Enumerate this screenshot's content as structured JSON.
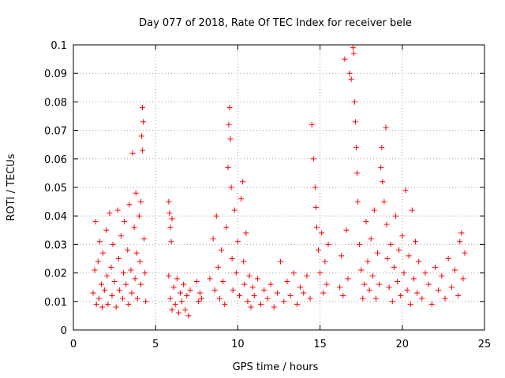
{
  "chart_data": {
    "type": "scatter",
    "title": "Day 077 of 2018, Rate Of TEC Index for receiver bele",
    "xlabel": "GPS time / hours",
    "ylabel": "ROTI / TECUs",
    "xlim": [
      0,
      25
    ],
    "ylim": [
      0,
      0.1
    ],
    "xticks": [
      0,
      5,
      10,
      15,
      20,
      25
    ],
    "xtick_labels": [
      "0",
      "5",
      "10",
      "15",
      "20",
      "25"
    ],
    "yticks": [
      0,
      0.01,
      0.02,
      0.03,
      0.04,
      0.05,
      0.06,
      0.07,
      0.08,
      0.09,
      0.1
    ],
    "ytick_labels": [
      "0",
      "0.01",
      "0.02",
      "0.03",
      "0.04",
      "0.05",
      "0.06",
      "0.07",
      "0.08",
      "0.09",
      "0.1"
    ],
    "grid": true,
    "legend": "none",
    "marker": "+",
    "color": "#ff0000",
    "series": [
      {
        "points": [
          [
            1.2,
            0.013
          ],
          [
            1.3,
            0.021
          ],
          [
            1.35,
            0.038
          ],
          [
            1.4,
            0.009
          ],
          [
            1.5,
            0.024
          ],
          [
            1.55,
            0.011
          ],
          [
            1.6,
            0.031
          ],
          [
            1.7,
            0.016
          ],
          [
            1.75,
            0.008
          ],
          [
            1.8,
            0.027
          ],
          [
            1.9,
            0.014
          ],
          [
            2.0,
            0.035
          ],
          [
            2.05,
            0.019
          ],
          [
            2.1,
            0.009
          ],
          [
            2.2,
            0.041
          ],
          [
            2.3,
            0.022
          ],
          [
            2.35,
            0.012
          ],
          [
            2.4,
            0.03
          ],
          [
            2.5,
            0.017
          ],
          [
            2.6,
            0.008
          ],
          [
            2.7,
            0.042
          ],
          [
            2.75,
            0.025
          ],
          [
            2.8,
            0.014
          ],
          [
            2.9,
            0.033
          ],
          [
            3.0,
            0.011
          ],
          [
            3.05,
            0.02
          ],
          [
            3.1,
            0.038
          ],
          [
            3.2,
            0.016
          ],
          [
            3.3,
            0.028
          ],
          [
            3.35,
            0.009
          ],
          [
            3.4,
            0.044
          ],
          [
            3.5,
            0.021
          ],
          [
            3.55,
            0.013
          ],
          [
            3.6,
            0.062
          ],
          [
            3.7,
            0.036
          ],
          [
            3.75,
            0.018
          ],
          [
            3.8,
            0.048
          ],
          [
            3.85,
            0.027
          ],
          [
            3.9,
            0.011
          ],
          [
            4.0,
            0.04
          ],
          [
            4.05,
            0.024
          ],
          [
            4.1,
            0.016
          ],
          [
            4.15,
            0.068
          ],
          [
            4.2,
            0.078
          ],
          [
            4.25,
            0.073
          ],
          [
            4.3,
            0.032
          ],
          [
            4.35,
            0.02
          ],
          [
            4.4,
            0.01
          ],
          [
            4.2,
            0.063
          ],
          [
            4.1,
            0.045
          ],
          [
            5.8,
            0.045
          ],
          [
            5.85,
            0.041
          ],
          [
            5.9,
            0.036
          ],
          [
            5.95,
            0.031
          ],
          [
            6.0,
            0.039
          ],
          [
            5.8,
            0.019
          ],
          [
            5.9,
            0.011
          ],
          [
            6.0,
            0.007
          ],
          [
            6.1,
            0.015
          ],
          [
            6.2,
            0.009
          ],
          [
            6.3,
            0.018
          ],
          [
            6.4,
            0.006
          ],
          [
            6.5,
            0.013
          ],
          [
            6.6,
            0.01
          ],
          [
            6.7,
            0.016
          ],
          [
            6.8,
            0.007
          ],
          [
            6.9,
            0.012
          ],
          [
            7.0,
            0.005
          ],
          [
            7.1,
            0.014
          ],
          [
            7.5,
            0.017
          ],
          [
            7.6,
            0.01
          ],
          [
            7.7,
            0.013
          ],
          [
            7.8,
            0.011
          ],
          [
            8.3,
            0.018
          ],
          [
            8.5,
            0.032
          ],
          [
            8.6,
            0.014
          ],
          [
            8.7,
            0.04
          ],
          [
            8.8,
            0.022
          ],
          [
            8.9,
            0.011
          ],
          [
            9.0,
            0.028
          ],
          [
            9.1,
            0.017
          ],
          [
            9.2,
            0.009
          ],
          [
            9.3,
            0.036
          ],
          [
            9.4,
            0.057
          ],
          [
            9.45,
            0.072
          ],
          [
            9.5,
            0.078
          ],
          [
            9.55,
            0.067
          ],
          [
            9.6,
            0.05
          ],
          [
            9.65,
            0.025
          ],
          [
            9.7,
            0.014
          ],
          [
            9.8,
            0.042
          ],
          [
            9.9,
            0.02
          ],
          [
            10.0,
            0.031
          ],
          [
            10.1,
            0.012
          ],
          [
            10.2,
            0.046
          ],
          [
            10.3,
            0.052
          ],
          [
            10.35,
            0.024
          ],
          [
            10.4,
            0.016
          ],
          [
            10.5,
            0.034
          ],
          [
            10.6,
            0.01
          ],
          [
            10.7,
            0.019
          ],
          [
            10.8,
            0.008
          ],
          [
            10.9,
            0.015
          ],
          [
            11.0,
            0.012
          ],
          [
            11.2,
            0.018
          ],
          [
            11.4,
            0.009
          ],
          [
            11.6,
            0.014
          ],
          [
            11.8,
            0.011
          ],
          [
            12.0,
            0.016
          ],
          [
            12.2,
            0.008
          ],
          [
            12.4,
            0.013
          ],
          [
            12.6,
            0.024
          ],
          [
            12.8,
            0.01
          ],
          [
            13.0,
            0.017
          ],
          [
            13.2,
            0.012
          ],
          [
            13.4,
            0.02
          ],
          [
            13.6,
            0.009
          ],
          [
            13.8,
            0.015
          ],
          [
            14.0,
            0.013
          ],
          [
            14.2,
            0.019
          ],
          [
            14.4,
            0.011
          ],
          [
            14.5,
            0.072
          ],
          [
            14.6,
            0.06
          ],
          [
            14.7,
            0.05
          ],
          [
            14.75,
            0.043
          ],
          [
            14.8,
            0.036
          ],
          [
            14.9,
            0.028
          ],
          [
            15.0,
            0.02
          ],
          [
            15.1,
            0.034
          ],
          [
            15.2,
            0.013
          ],
          [
            15.3,
            0.024
          ],
          [
            15.4,
            0.016
          ],
          [
            15.5,
            0.03
          ],
          [
            16.2,
            0.015
          ],
          [
            16.3,
            0.026
          ],
          [
            16.4,
            0.012
          ],
          [
            16.5,
            0.095
          ],
          [
            16.6,
            0.035
          ],
          [
            16.7,
            0.018
          ],
          [
            16.8,
            0.09
          ],
          [
            16.9,
            0.088
          ],
          [
            17.0,
            0.099
          ],
          [
            17.05,
            0.097
          ],
          [
            17.1,
            0.08
          ],
          [
            17.15,
            0.073
          ],
          [
            17.2,
            0.064
          ],
          [
            17.25,
            0.055
          ],
          [
            17.3,
            0.045
          ],
          [
            17.4,
            0.03
          ],
          [
            17.5,
            0.021
          ],
          [
            17.6,
            0.011
          ],
          [
            17.7,
            0.016
          ],
          [
            17.8,
            0.038
          ],
          [
            17.9,
            0.024
          ],
          [
            18.0,
            0.014
          ],
          [
            18.1,
            0.032
          ],
          [
            18.2,
            0.019
          ],
          [
            18.3,
            0.042
          ],
          [
            18.4,
            0.011
          ],
          [
            18.5,
            0.027
          ],
          [
            18.6,
            0.016
          ],
          [
            18.7,
            0.057
          ],
          [
            18.75,
            0.064
          ],
          [
            18.8,
            0.052
          ],
          [
            18.9,
            0.045
          ],
          [
            19.0,
            0.071
          ],
          [
            19.05,
            0.037
          ],
          [
            19.1,
            0.025
          ],
          [
            19.2,
            0.015
          ],
          [
            19.3,
            0.03
          ],
          [
            19.4,
            0.01
          ],
          [
            19.5,
            0.022
          ],
          [
            19.6,
            0.04
          ],
          [
            19.7,
            0.017
          ],
          [
            19.8,
            0.028
          ],
          [
            19.9,
            0.012
          ],
          [
            20.0,
            0.033
          ],
          [
            20.1,
            0.02
          ],
          [
            20.2,
            0.049
          ],
          [
            20.3,
            0.014
          ],
          [
            20.4,
            0.026
          ],
          [
            20.5,
            0.009
          ],
          [
            20.6,
            0.042
          ],
          [
            20.7,
            0.018
          ],
          [
            20.8,
            0.031
          ],
          [
            20.9,
            0.013
          ],
          [
            21.0,
            0.024
          ],
          [
            21.2,
            0.011
          ],
          [
            21.4,
            0.02
          ],
          [
            21.6,
            0.016
          ],
          [
            21.8,
            0.009
          ],
          [
            22.0,
            0.022
          ],
          [
            22.2,
            0.014
          ],
          [
            22.4,
            0.019
          ],
          [
            22.6,
            0.011
          ],
          [
            22.8,
            0.025
          ],
          [
            23.0,
            0.015
          ],
          [
            23.2,
            0.021
          ],
          [
            23.4,
            0.012
          ],
          [
            23.5,
            0.031
          ],
          [
            23.6,
            0.034
          ],
          [
            23.7,
            0.018
          ],
          [
            23.8,
            0.027
          ]
        ]
      }
    ]
  }
}
